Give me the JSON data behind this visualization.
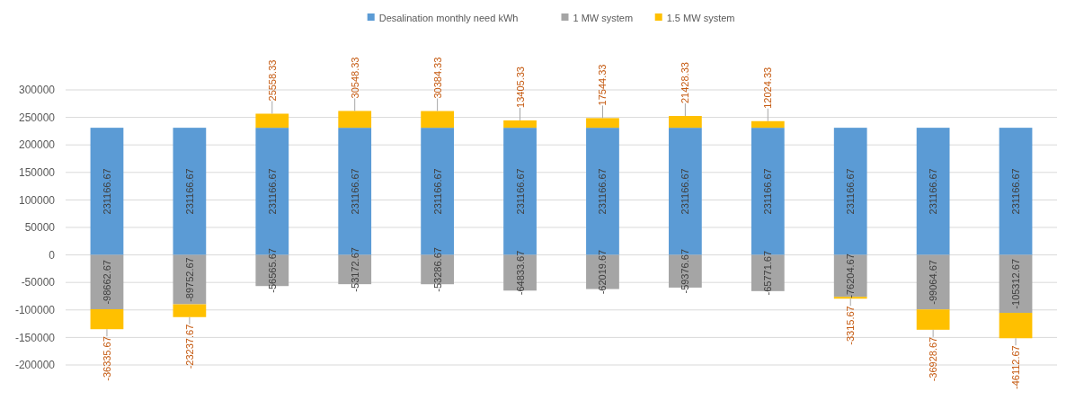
{
  "chart_data": {
    "type": "bar",
    "stacked": true,
    "categories": [
      null,
      null,
      null,
      null,
      null,
      null,
      null,
      null,
      null,
      null,
      null,
      null
    ],
    "series": [
      {
        "name": "Desalination monthly need kWh",
        "color": "#5b9bd5",
        "values": [
          231166.67,
          231166.67,
          231166.67,
          231166.67,
          231166.67,
          231166.67,
          231166.67,
          231166.67,
          231166.67,
          231166.67,
          231166.67,
          231166.67
        ]
      },
      {
        "name": "1 MW system",
        "color": "#a5a5a5",
        "values": [
          -98662.67,
          -89752.67,
          -56565.67,
          -53172.67,
          -53286.67,
          -64833.67,
          -62019.67,
          -59376.67,
          -65771.67,
          -76204.67,
          -99064.67,
          -105312.67
        ]
      },
      {
        "name": "1.5 MW system",
        "color": "#ffc000",
        "values": [
          -36335.67,
          -23237.67,
          25558.33,
          30548.33,
          30384.33,
          13405.33,
          17544.33,
          21428.33,
          12024.33,
          -3315.67,
          -36928.67,
          -46112.67
        ]
      }
    ],
    "ylim": [
      -200000,
      300000
    ],
    "yticks": [
      -200000,
      -150000,
      -100000,
      -50000,
      0,
      50000,
      100000,
      150000,
      200000,
      250000,
      300000
    ],
    "grid": "y",
    "legend": "top",
    "data_labels": true
  }
}
